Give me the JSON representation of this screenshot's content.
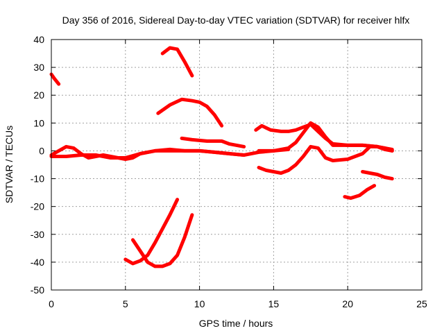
{
  "chart_data": {
    "type": "line",
    "title": "Day 356 of 2016, Sidereal Day-to-day VTEC variation (SDTVAR) for receiver hlfx",
    "xlabel": "GPS time / hours",
    "ylabel": "SDTVAR / TECUs",
    "xlim": [
      0,
      25
    ],
    "ylim": [
      -50,
      40
    ],
    "xticks": [
      0,
      5,
      10,
      15,
      20,
      25
    ],
    "yticks": [
      -50,
      -40,
      -30,
      -20,
      -10,
      0,
      10,
      20,
      30,
      40
    ],
    "grid": true,
    "color": "#ff0000",
    "series": [
      {
        "name": "s1",
        "x": [
          0.0,
          0.2,
          0.5
        ],
        "y": [
          27.5,
          26,
          24
        ]
      },
      {
        "name": "s2",
        "x": [
          0.0,
          0.5,
          1.0,
          1.5,
          2.0,
          2.5,
          3.0,
          3.5,
          4.0,
          4.5,
          5.0,
          5.5,
          6.0
        ],
        "y": [
          -1.5,
          0,
          1.5,
          1,
          -1,
          -2.5,
          -2,
          -1.5,
          -2,
          -2.5,
          -3,
          -2.5,
          -1
        ]
      },
      {
        "name": "s3",
        "x": [
          0.0,
          1.0,
          2.0,
          3.0,
          4.0,
          5.0,
          6.0,
          7.0,
          8.0,
          9.0,
          10.0,
          11.0,
          12.0,
          13.0,
          14.0,
          15.0,
          16.0
        ],
        "y": [
          -2,
          -2,
          -1.5,
          -1.5,
          -2.5,
          -2.5,
          -1,
          0,
          0.5,
          0,
          0,
          -0.5,
          -1,
          -1.5,
          -0.5,
          0,
          0.5
        ]
      },
      {
        "name": "s4",
        "x": [
          5.5,
          6.0,
          7.0,
          8.0,
          9.0,
          10.0,
          11.0,
          12.0,
          13.0
        ],
        "y": [
          -2,
          -1,
          0,
          0,
          0,
          0,
          -0.5,
          -1,
          -1.5
        ]
      },
      {
        "name": "s5",
        "x": [
          7.5,
          8.0,
          8.5,
          9.0,
          9.5
        ],
        "y": [
          35,
          37,
          36.5,
          32,
          27
        ]
      },
      {
        "name": "s6",
        "x": [
          7.2,
          8.0,
          8.8,
          9.5,
          10.0,
          10.5,
          11.0,
          11.5
        ],
        "y": [
          13.5,
          16.5,
          18.5,
          18,
          17.5,
          16,
          13,
          9
        ]
      },
      {
        "name": "s7",
        "x": [
          8.8,
          9.5,
          10.5,
          11.5,
          12.0,
          12.5,
          13.0
        ],
        "y": [
          4.5,
          4,
          3.5,
          3.5,
          2.5,
          2,
          1.5
        ]
      },
      {
        "name": "s8",
        "x": [
          5.0,
          5.5,
          6.0,
          6.5,
          7.0,
          7.5,
          8.0,
          8.5
        ],
        "y": [
          -39,
          -40.5,
          -39.5,
          -37.5,
          -33,
          -28,
          -23,
          -17.5
        ]
      },
      {
        "name": "s9",
        "x": [
          5.5,
          6.0,
          6.5,
          7.0,
          7.5,
          8.0,
          8.5,
          9.0,
          9.5
        ],
        "y": [
          -32,
          -36,
          -40,
          -41.5,
          -41.5,
          -40.5,
          -37.5,
          -31,
          -23
        ]
      },
      {
        "name": "s10",
        "x": [
          13.8,
          14.2,
          14.8,
          15.5,
          16.0,
          16.5,
          17.0,
          17.5,
          18.0,
          18.5,
          19.0,
          20.0,
          21.0,
          22.0,
          23.0
        ],
        "y": [
          7.5,
          9,
          7.5,
          7,
          7,
          7.5,
          8.5,
          9.5,
          7,
          4.5,
          2.5,
          2,
          2,
          1.5,
          0.5
        ]
      },
      {
        "name": "s11",
        "x": [
          14.0,
          15.0,
          16.0,
          16.5,
          17.0,
          17.5,
          18.0,
          18.5,
          19.0,
          20.0,
          21.0,
          22.0,
          22.5,
          23.0
        ],
        "y": [
          0,
          0,
          1,
          3,
          6.5,
          10,
          8.5,
          5,
          2,
          2,
          2,
          1.5,
          1,
          0
        ]
      },
      {
        "name": "s12",
        "x": [
          14.0,
          14.5,
          15.0,
          15.5,
          16.0,
          16.5,
          17.0,
          17.5,
          18.0,
          18.5,
          19.0,
          20.0,
          21.0,
          21.5,
          22.0,
          22.5,
          23.0
        ],
        "y": [
          -6,
          -7,
          -7.5,
          -8,
          -7,
          -5,
          -2,
          1.5,
          1,
          -2.5,
          -3.5,
          -3,
          -1,
          1.5,
          1.5,
          0.5,
          0
        ]
      },
      {
        "name": "s13",
        "x": [
          19.8,
          20.2,
          20.8,
          21.3,
          21.8
        ],
        "y": [
          -16.5,
          -17,
          -16,
          -14,
          -12.5
        ]
      },
      {
        "name": "s14",
        "x": [
          21.0,
          21.5,
          22.0,
          22.5,
          23.0
        ],
        "y": [
          -7.5,
          -8,
          -8.5,
          -9.5,
          -10
        ]
      }
    ]
  }
}
